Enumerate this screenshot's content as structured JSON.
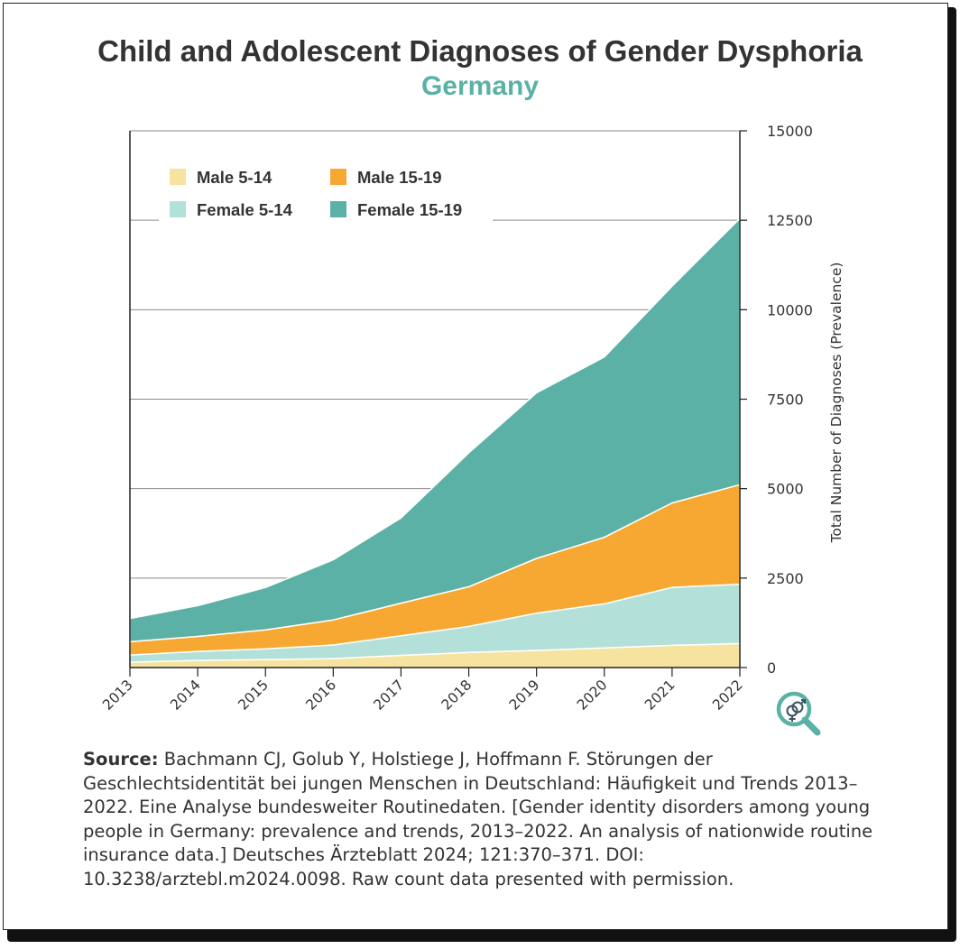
{
  "title": "Child and Adolescent Diagnoses of Gender Dysphoria",
  "subtitle": "Germany",
  "colors": {
    "title": "#333333",
    "subtitle": "#5bb1a5",
    "male_5_14": "#f6e3a0",
    "female_5_14": "#b3e0d8",
    "male_15_19": "#f6a833",
    "female_15_19": "#5bb1a5",
    "grid": "#8a8a8a",
    "text": "#333333"
  },
  "logo_icon": "gender-symbols-magnifier-icon",
  "source": {
    "label": "Source:",
    "text": "Bachmann CJ, Golub Y, Holstiege J, Hoffmann F. Störungen der Geschlechtsidentität bei jungen Menschen in Deutschland: Häufigkeit und Trends 2013–2022. Eine Analyse bundesweiter Routinedaten. [Gender identity disorders among young people in Germany: prevalence and trends, 2013–2022. An analysis of nationwide routine insurance data.] Deutsches Ärzteblatt 2024; 121:370–371. DOI: 10.3238/arztebl.m2024.0098. Raw count data presented with permission."
  },
  "chart_data": {
    "type": "area",
    "stacked": true,
    "x": [
      "2013",
      "2014",
      "2015",
      "2016",
      "2017",
      "2018",
      "2019",
      "2020",
      "2021",
      "2022"
    ],
    "ylabel": "Total Number of Diagnoses (Prevalence)",
    "y_axis_side": "right",
    "ylim": [
      0,
      15000
    ],
    "yticks": [
      "0",
      "2500",
      "5000",
      "7500",
      "10000",
      "12500",
      "15000"
    ],
    "grid": true,
    "legend_position": "top-left",
    "series": [
      {
        "name": "Male 5-14",
        "color": "#f6e3a0",
        "values": [
          150,
          200,
          225,
          250,
          340,
          420,
          480,
          550,
          620,
          670
        ]
      },
      {
        "name": "Female 5-14",
        "color": "#b3e0d8",
        "values": [
          200,
          250,
          300,
          380,
          550,
          730,
          1040,
          1230,
          1620,
          1660
        ]
      },
      {
        "name": "Male 15-19",
        "color": "#f6a833",
        "values": [
          370,
          420,
          530,
          700,
          910,
          1110,
          1530,
          1860,
          2360,
          2780
        ]
      },
      {
        "name": "Female 15-19",
        "color": "#5bb1a5",
        "values": [
          650,
          860,
          1180,
          1680,
          2380,
          3740,
          4630,
          5040,
          6060,
          7440
        ]
      }
    ]
  }
}
